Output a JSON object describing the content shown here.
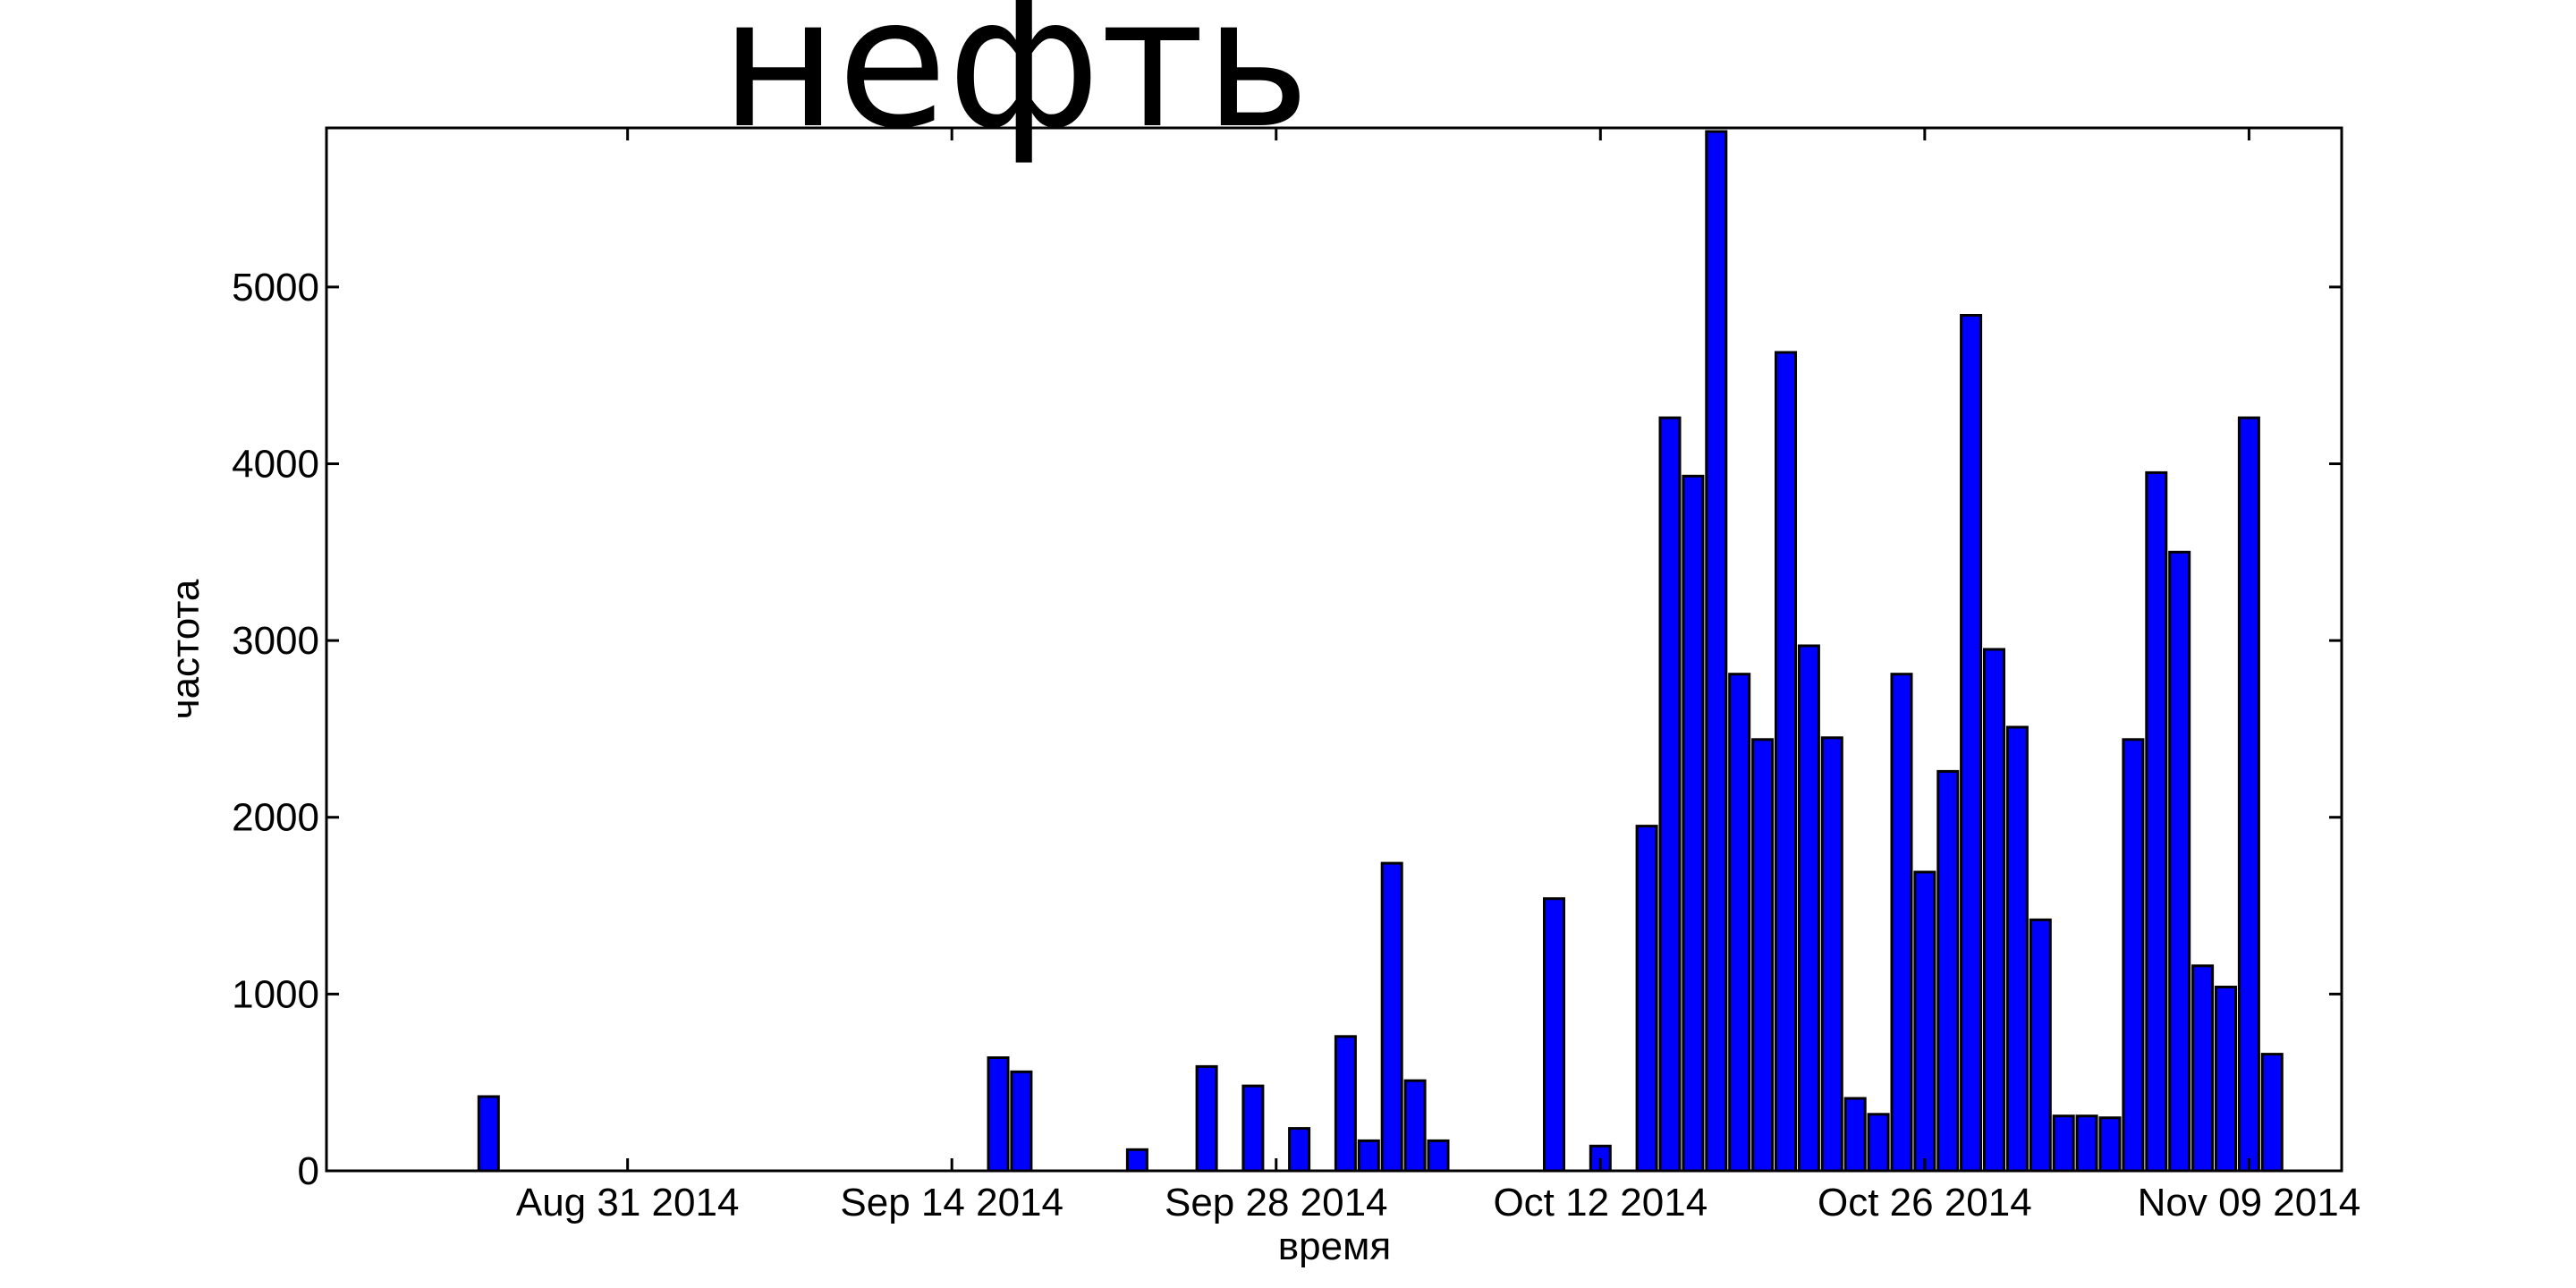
{
  "chart_data": {
    "type": "bar",
    "title": "нефть",
    "xlabel": "время",
    "ylabel": "частота",
    "bar_color": "#0000ff",
    "ylim": [
      0,
      5900
    ],
    "yticks": [
      0,
      1000,
      2000,
      3000,
      4000,
      5000
    ],
    "xlim": [
      "2014-08-18",
      "2014-11-13"
    ],
    "xticks": [
      {
        "date": "2014-08-31",
        "label": "Aug 31 2014"
      },
      {
        "date": "2014-09-14",
        "label": "Sep 14 2014"
      },
      {
        "date": "2014-09-28",
        "label": "Sep 28 2014"
      },
      {
        "date": "2014-10-12",
        "label": "Oct 12 2014"
      },
      {
        "date": "2014-10-26",
        "label": "Oct 26 2014"
      },
      {
        "date": "2014-11-09",
        "label": "Nov 09 2014"
      }
    ],
    "x": [
      "2014-08-25",
      "2014-09-16",
      "2014-09-17",
      "2014-09-22",
      "2014-09-25",
      "2014-09-27",
      "2014-09-29",
      "2014-10-01",
      "2014-10-02",
      "2014-10-03",
      "2014-10-04",
      "2014-10-05",
      "2014-10-10",
      "2014-10-12",
      "2014-10-14",
      "2014-10-15",
      "2014-10-16",
      "2014-10-17",
      "2014-10-18",
      "2014-10-19",
      "2014-10-20",
      "2014-10-21",
      "2014-10-22",
      "2014-10-23",
      "2014-10-24",
      "2014-10-25",
      "2014-10-26",
      "2014-10-27",
      "2014-10-28",
      "2014-10-29",
      "2014-10-30",
      "2014-10-31",
      "2014-11-01",
      "2014-11-02",
      "2014-11-03",
      "2014-11-04",
      "2014-11-05",
      "2014-11-06",
      "2014-11-07",
      "2014-11-08",
      "2014-11-09",
      "2014-11-10",
      "2014-11-11",
      "2014-11-12"
    ],
    "values": [
      420,
      640,
      560,
      120,
      590,
      480,
      240,
      760,
      170,
      1740,
      510,
      170,
      1540,
      140,
      1950,
      4260,
      3930,
      5880,
      2810,
      2440,
      4630,
      2970,
      2450,
      410,
      320,
      2810,
      1690,
      2260,
      4840,
      2950,
      2510,
      1420,
      310,
      310,
      300,
      2440,
      3950,
      3500,
      1160,
      1040,
      4260,
      660,
      0,
      0
    ]
  }
}
